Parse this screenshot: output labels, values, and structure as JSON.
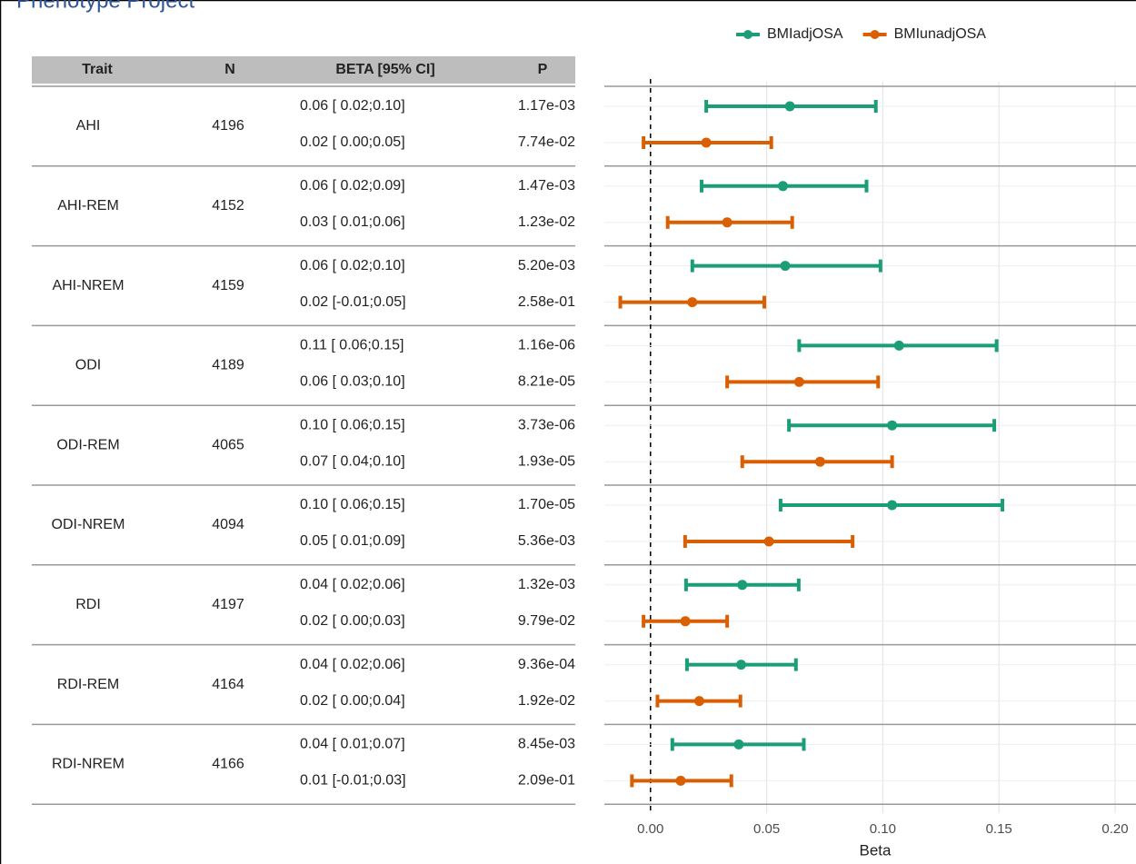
{
  "title": "Phenotype Project",
  "chart_data": {
    "type": "forest",
    "columns": [
      "Trait",
      "N",
      "BETA [95% CI]",
      "P"
    ],
    "traits": [
      "AHI",
      "AHI-REM",
      "AHI-NREM",
      "ODI",
      "ODI-REM",
      "ODI-NREM",
      "RDI",
      "RDI-REM",
      "RDI-NREM"
    ],
    "n": [
      4196,
      4152,
      4159,
      4189,
      4065,
      4094,
      4197,
      4164,
      4166
    ],
    "series": [
      {
        "name": "BMIadjOSA",
        "color": "#1b9e77",
        "values": [
          0.06,
          0.057,
          0.058,
          0.107,
          0.104,
          0.104,
          0.0395,
          0.039,
          0.038
        ],
        "lower": [
          0.024,
          0.022,
          0.018,
          0.064,
          0.0596,
          0.056,
          0.0153,
          0.0157,
          0.0094
        ],
        "upper": [
          0.097,
          0.093,
          0.099,
          0.149,
          0.148,
          0.1515,
          0.0638,
          0.0626,
          0.066
        ],
        "value_labels": [
          "0.06 [ 0.02;0.10]",
          "0.06 [ 0.02;0.09]",
          "0.06 [ 0.02;0.10]",
          "0.11 [ 0.06;0.15]",
          "0.10 [ 0.06;0.15]",
          "0.10 [ 0.06;0.15]",
          "0.04 [ 0.02;0.06]",
          "0.04 [ 0.02;0.06]",
          "0.04 [ 0.01;0.07]"
        ],
        "p_values": [
          "1.17e-03",
          "1.47e-03",
          "5.20e-03",
          "1.16e-06",
          "3.73e-06",
          "1.70e-05",
          "1.32e-03",
          "9.36e-04",
          "8.45e-03"
        ]
      },
      {
        "name": "BMIunadjOSA",
        "color": "#d95f02",
        "values": [
          0.024,
          0.033,
          0.018,
          0.064,
          0.073,
          0.051,
          0.015,
          0.021,
          0.013
        ],
        "lower": [
          -0.003,
          0.0074,
          -0.013,
          0.033,
          0.0395,
          0.0149,
          -0.003,
          0.003,
          -0.008
        ],
        "upper": [
          0.052,
          0.061,
          0.049,
          0.098,
          0.104,
          0.087,
          0.033,
          0.0387,
          0.0348
        ],
        "value_labels": [
          "0.02 [ 0.00;0.05]",
          "0.03 [ 0.01;0.06]",
          "0.02 [-0.01;0.05]",
          "0.06 [ 0.03;0.10]",
          "0.07 [ 0.04;0.10]",
          "0.05 [ 0.01;0.09]",
          "0.02 [ 0.00;0.03]",
          "0.02 [ 0.00;0.04]",
          "0.01 [-0.01;0.03]"
        ],
        "p_values": [
          "7.74e-02",
          "1.23e-02",
          "2.58e-01",
          "8.21e-05",
          "1.93e-05",
          "5.36e-03",
          "9.79e-02",
          "1.92e-02",
          "2.09e-01"
        ]
      }
    ],
    "xlim": [
      -0.014,
      0.209
    ],
    "xticks": [
      {
        "value": 0,
        "label": "0.00"
      },
      {
        "value": 0.05,
        "label": "0.05"
      },
      {
        "value": 0.1,
        "label": "0.10"
      },
      {
        "value": 0.15,
        "label": "0.15"
      },
      {
        "value": 0.2,
        "label": "0.20"
      }
    ],
    "xlabel": "Beta",
    "grid": true,
    "zero_line": true,
    "legend": "top"
  }
}
